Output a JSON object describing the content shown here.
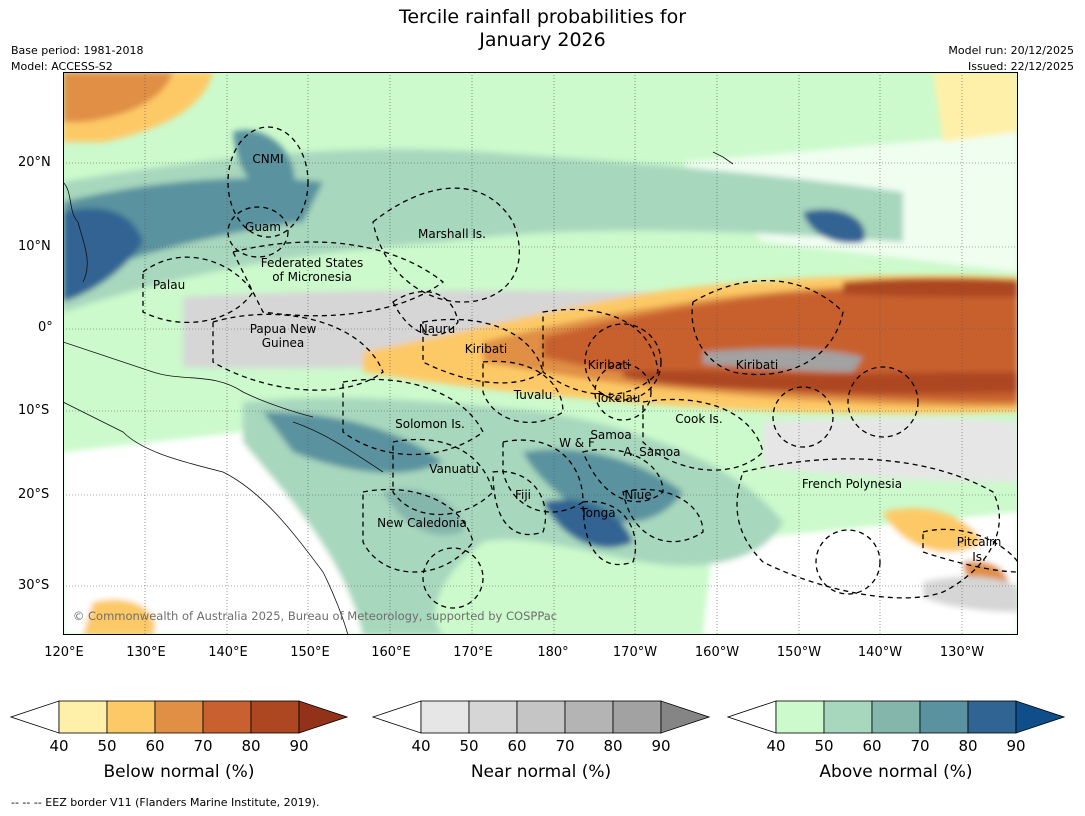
{
  "title": {
    "line1": "Tercile rainfall probabilities for",
    "line2": "January 2026"
  },
  "meta": {
    "base_period": "Base period: 1981-2018",
    "model": "Model: ACCESS-S2",
    "model_run": "Model run: 20/12/2025",
    "issued": "Issued: 22/12/2025"
  },
  "map": {
    "lat_ticks": [
      "20°N",
      "10°N",
      "0°",
      "10°S",
      "20°S",
      "30°S"
    ],
    "lon_ticks": [
      "120°E",
      "130°E",
      "140°E",
      "150°E",
      "160°E",
      "170°E",
      "180°",
      "170°W",
      "160°W",
      "150°W",
      "140°W",
      "130°W"
    ],
    "credit": "© Commonwealth of Australia 2025, Bureau of Meteorology, supported by COSPPac",
    "labels": {
      "cnmi": "CNMI",
      "guam": "Guam",
      "marshall": "Marshall Is.",
      "fsm1": "Federated States",
      "fsm2": "of Micronesia",
      "palau": "Palau",
      "png1": "Papua New",
      "png2": "Guinea",
      "nauru": "Nauru",
      "kiribati_w": "Kiribati",
      "kiribati_c": "Kiribati",
      "kiribati_e": "Kiribati",
      "tuvalu": "Tuvalu",
      "tokelau": "Tokelau",
      "solomon": "Solomon Is.",
      "wf": "W & F",
      "samoa": "Samoa",
      "asamoa": "A. Samoa",
      "cook": "Cook Is.",
      "vanuatu": "Vanuatu",
      "fiji": "Fiji",
      "niue": "Niue",
      "tonga": "Tonga",
      "frenchpoly": "French Polynesia",
      "newcal": "New Caledonia",
      "pitcairn1": "Pitcairn",
      "pitcairn2": "Is."
    }
  },
  "colorbars": [
    {
      "label": "Below normal (%)",
      "ticks": [
        "40",
        "50",
        "60",
        "70",
        "80",
        "90"
      ],
      "colors": [
        "#fef0a8",
        "#fdc966",
        "#e08f45",
        "#c8602f",
        "#ad4721"
      ],
      "over": "#913219"
    },
    {
      "label": "Near normal (%)",
      "ticks": [
        "40",
        "50",
        "60",
        "70",
        "80",
        "90"
      ],
      "colors": [
        "#e6e6e6",
        "#d6d6d6",
        "#c5c5c5",
        "#b4b4b4",
        "#a2a2a2"
      ],
      "over": "#858585"
    },
    {
      "label": "Above normal (%)",
      "ticks": [
        "40",
        "50",
        "60",
        "70",
        "80",
        "90"
      ],
      "colors": [
        "#ccfacc",
        "#a7d7bd",
        "#85b6ac",
        "#5a939f",
        "#306493"
      ],
      "over": "#104e8b"
    }
  ],
  "footer": "--  --  -- EEZ border V11 (Flanders Marine Institute, 2019)."
}
